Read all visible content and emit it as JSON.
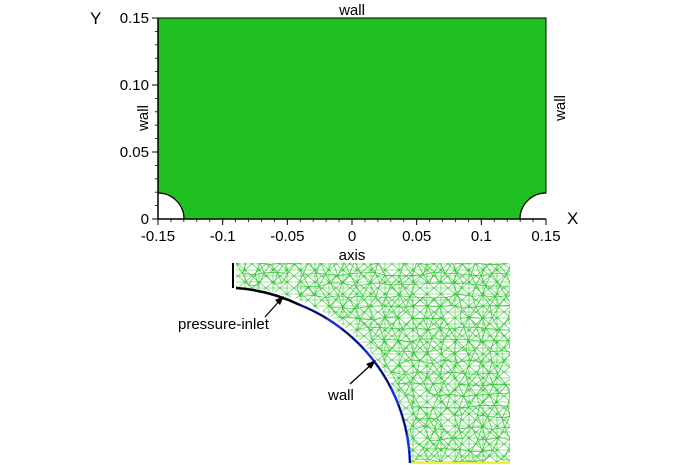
{
  "domain_plot": {
    "axis_x_name": "X",
    "axis_y_name": "Y",
    "x_ticks": [
      "-0.15",
      "-0.1",
      "-0.05",
      "0",
      "0.05",
      "0.1",
      "0.15"
    ],
    "y_ticks": [
      "0",
      "0.05",
      "0.10",
      "0.15"
    ],
    "x_range": [
      -0.15,
      0.15
    ],
    "y_range": [
      0,
      0.15
    ],
    "label_top": "wall",
    "label_left": "wall",
    "label_right": "wall",
    "label_bottom": "axis",
    "fill_color": "#1fc01f"
  },
  "detail_view": {
    "label_inlet": "pressure-inlet",
    "label_wall": "wall",
    "mesh_color": "#2fc42f",
    "inlet_color": "#000000",
    "wall_color": "#1a2fe0",
    "axis_color": "#f0f040"
  }
}
